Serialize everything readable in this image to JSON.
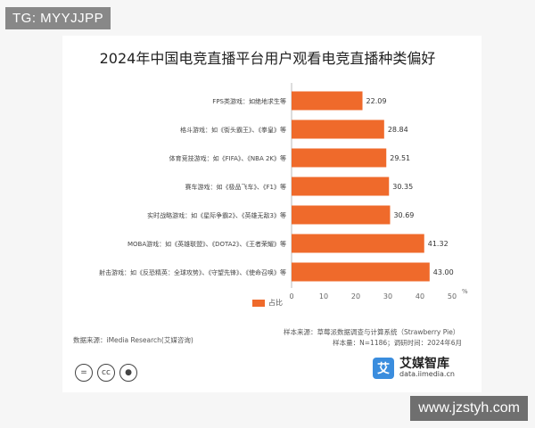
{
  "watermarks": {
    "top": "TG: MYYJJPP",
    "bottom": "www.jzstyh.com"
  },
  "chart_data": {
    "type": "bar",
    "orientation": "horizontal",
    "title": "2024年中国电竞直播平台用户观看电竞直播种类偏好",
    "categories": [
      "FPS类游戏：如绝地求生等",
      "格斗游戏：如《街头霸王》、《拳皇》等",
      "体育竞技游戏：如《FIFA》、《NBA 2K》等",
      "赛车游戏：如《极品飞车》、《F1》等",
      "实时战略游戏：如《星际争霸2》、《英雄无敌3》等",
      "MOBA游戏：如《英雄联盟》、《DOTA2》、《王者荣耀》等",
      "射击游戏：如《反恐精英：全球攻势》、《守望先锋》、《使命召唤》等"
    ],
    "series": [
      {
        "name": "占比",
        "values": [
          22.09,
          28.84,
          29.51,
          30.35,
          30.69,
          41.32,
          43.0
        ],
        "labels": [
          "22.09",
          "28.84",
          "29.51",
          "30.35",
          "30.69",
          "41.32",
          "43.00"
        ]
      }
    ],
    "xlim": [
      0,
      50
    ],
    "xticks": [
      "0",
      "10",
      "20",
      "30",
      "40",
      "50"
    ],
    "x_unit": "%",
    "grid": false,
    "legend": "bottom-center",
    "bar_color": "#ef6a2b"
  },
  "footer": {
    "data_source": "数据来源：iMedia Research(艾媒咨询)",
    "sample_source": "样本来源：草莓派数据调查与计算系统（Strawberry Pie）",
    "sample_size": "样本量：N=1186；调研时间：2024年6月"
  },
  "logo": {
    "mark": "艾",
    "name": "艾媒智库",
    "url": "data.iimedia.cn"
  },
  "license_icons": [
    "equals-icon",
    "cc-icon",
    "person-icon"
  ]
}
